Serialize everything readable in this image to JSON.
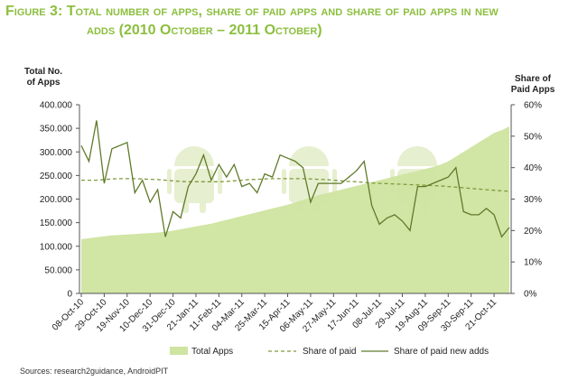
{
  "caption": {
    "lead": "Figure 3:",
    "line1": "Total number of apps, share of paid apps and share of paid apps in new",
    "line2": "adds (2010 October – 2011 October)"
  },
  "source": "Sources: research2guidance, AndroidPIT",
  "colors": {
    "caption": "#8cbf3f",
    "area": "#cfe4a0",
    "lines": "#5f7a2a",
    "watermark": "#e6efcf"
  },
  "chart_data": {
    "type": "line",
    "left_axis": {
      "title": [
        "Total No.",
        "of Apps"
      ],
      "ylim": [
        0,
        400000
      ],
      "ticks": [
        "0",
        "50.000",
        "100.000",
        "150.000",
        "200.000",
        "250.000",
        "300.000",
        "350.000",
        "400.000"
      ]
    },
    "right_axis": {
      "title": [
        "Share of",
        "Paid Apps"
      ],
      "ylim": [
        0,
        60
      ],
      "ticks": [
        "0%",
        "10%",
        "20%",
        "30%",
        "40%",
        "50%",
        "60%"
      ]
    },
    "x_tick_labels": [
      "08-Oct-10",
      "29-Oct-10",
      "19-Nov-10",
      "10-Dec-10",
      "31-Dec-10",
      "21-Jan-11",
      "11-Feb-11",
      "04-Mar-11",
      "25-Mar-11",
      "15-Apr-11",
      "06-May-11",
      "27-May-11",
      "17-Jun-11",
      "08-Jul-11",
      "29-Jul-11",
      "19-Aug-11",
      "09-Sep-11",
      "30-Sep-11",
      "21-Oct-11"
    ],
    "points_per_tick": 3,
    "n_points": 57,
    "series": [
      {
        "name": "Total Apps",
        "style": "area",
        "axis": "left",
        "values": [
          115000,
          117000,
          119000,
          121000,
          123000,
          124000,
          125000,
          126000,
          127000,
          128000,
          129000,
          131000,
          133000,
          136000,
          139000,
          142000,
          145000,
          148000,
          152000,
          156000,
          160000,
          164000,
          168000,
          172000,
          176000,
          180000,
          184000,
          188000,
          193000,
          198000,
          203000,
          208000,
          212000,
          216000,
          220000,
          224000,
          228000,
          232000,
          236000,
          240000,
          244000,
          248000,
          252000,
          256000,
          260000,
          264000,
          268000,
          273000,
          280000,
          290000,
          300000,
          310000,
          320000,
          330000,
          340000,
          346000,
          354000
        ]
      },
      {
        "name": "Share of paid",
        "style": "dashed",
        "axis": "right",
        "values": [
          36,
          36,
          36,
          36.2,
          36.4,
          36.5,
          36.5,
          36.5,
          36.4,
          36.3,
          36.2,
          36,
          35.8,
          35.6,
          35.5,
          35.5,
          35.5,
          35.5,
          35.5,
          35.6,
          35.8,
          36,
          36.2,
          36.3,
          36.4,
          36.5,
          36.5,
          36.5,
          36.5,
          36.5,
          36.4,
          36.3,
          36.2,
          36,
          35.8,
          35.6,
          35.5,
          35.3,
          35.1,
          35,
          34.9,
          34.8,
          34.7,
          34.6,
          34.5,
          34.4,
          34.3,
          34.2,
          34,
          33.8,
          33.6,
          33.4,
          33.2,
          33,
          32.8,
          32.6,
          32.5
        ]
      },
      {
        "name": "Share of paid new adds",
        "style": "solid",
        "axis": "right",
        "values": [
          47,
          42,
          55,
          35,
          46,
          47,
          48,
          32,
          36,
          29,
          33,
          18,
          26,
          24,
          34,
          38,
          44,
          36,
          41,
          37,
          41,
          34,
          35,
          32,
          38,
          37,
          44,
          43,
          42,
          40,
          29,
          35,
          35,
          35,
          35,
          37,
          39,
          42,
          28,
          22,
          24,
          25,
          23,
          20,
          34,
          34,
          35,
          36,
          37,
          40,
          26,
          25,
          25,
          27,
          25,
          18,
          21
        ]
      }
    ],
    "legend": {
      "position": "bottom",
      "items": [
        "Total Apps",
        "Share of paid",
        "Share of paid new adds"
      ]
    }
  }
}
